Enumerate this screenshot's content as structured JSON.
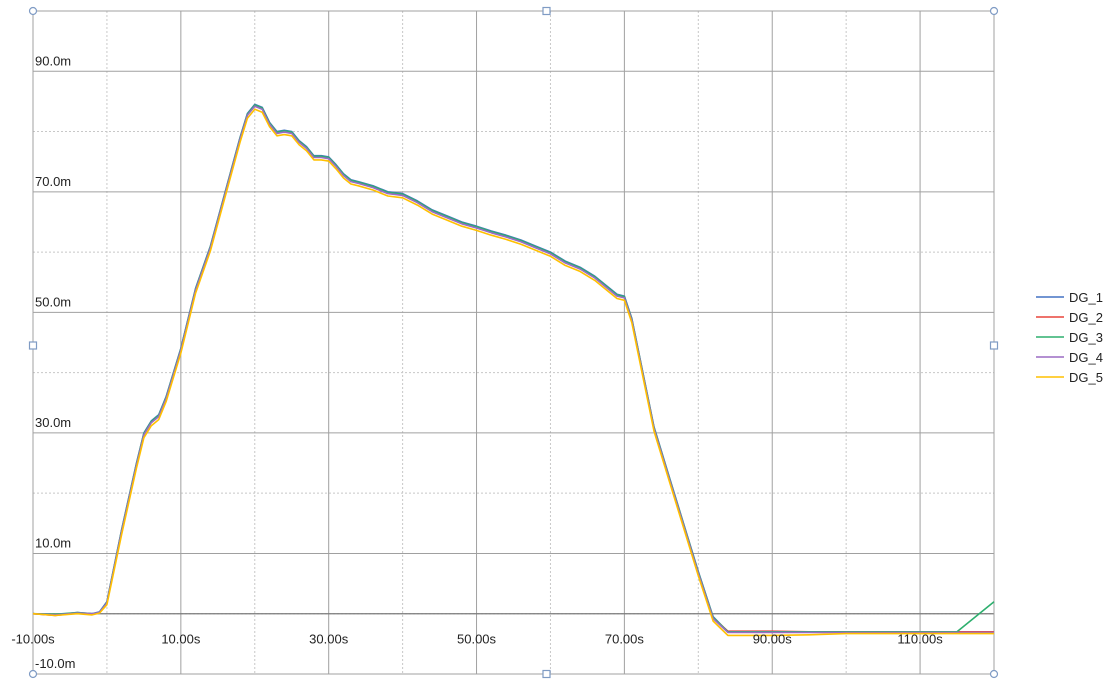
{
  "chart_data": {
    "type": "line",
    "title": "",
    "xlabel": "",
    "ylabel": "",
    "xlim": [
      -10,
      120
    ],
    "ylim": [
      -10,
      100
    ],
    "grid": true,
    "legend_position": "right",
    "x_major_ticks": [
      -10,
      10,
      30,
      50,
      70,
      90,
      110
    ],
    "x_tick_labels": [
      "-10.00s",
      "10.00s",
      "30.00s",
      "50.00s",
      "70.00s",
      "90.00s",
      "110.00s"
    ],
    "y_major_ticks": [
      -10,
      10,
      30,
      50,
      70,
      90
    ],
    "y_tick_labels": [
      "-10.0m",
      "10.0m",
      "30.0m",
      "50.0m",
      "70.0m",
      "90.0m"
    ],
    "x": [
      -10,
      -7,
      -4,
      -2,
      -1,
      0,
      2,
      4,
      5,
      6,
      7,
      8,
      10,
      12,
      14,
      16,
      18,
      19,
      20,
      21,
      22,
      23,
      24,
      25,
      26,
      27,
      28,
      29,
      30,
      31,
      32,
      33,
      34,
      36,
      38,
      40,
      42,
      44,
      46,
      48,
      50,
      52,
      54,
      56,
      58,
      60,
      62,
      64,
      66,
      68,
      69,
      70,
      71,
      72,
      74,
      76,
      78,
      80,
      82,
      84,
      85,
      86,
      90,
      95,
      100,
      105,
      110,
      115,
      120
    ],
    "series": [
      {
        "name": "DG_1",
        "color": "#4472C4",
        "values": [
          0,
          -0.2,
          0.2,
          0,
          0.3,
          2,
          14,
          25,
          30,
          32,
          33,
          36,
          44,
          54,
          61,
          70,
          79,
          83,
          84.5,
          84,
          81.5,
          80,
          80.2,
          80,
          78.5,
          77.5,
          76,
          76,
          75.8,
          74.5,
          73,
          72,
          71.7,
          71,
          70,
          69.7,
          68.5,
          67,
          66,
          65,
          64.3,
          63.5,
          62.8,
          62,
          61,
          60,
          58.5,
          57.5,
          56,
          54,
          53,
          52.7,
          49,
          43,
          31,
          23,
          15,
          7,
          -0.5,
          -3,
          -3,
          -3,
          -3,
          -3,
          -3,
          -3,
          -3,
          -3,
          -3
        ]
      },
      {
        "name": "DG_2",
        "color": "#E8453C",
        "values": [
          0,
          -0.3,
          0.1,
          -0.1,
          0.2,
          1.8,
          13.8,
          24.8,
          29.8,
          31.8,
          32.8,
          35.8,
          43.8,
          53.8,
          60.8,
          69.8,
          78.8,
          82.8,
          84.3,
          83.8,
          81.3,
          79.8,
          80,
          79.8,
          78.3,
          77.3,
          75.8,
          75.8,
          75.6,
          74.3,
          72.8,
          71.8,
          71.5,
          70.8,
          69.8,
          69.5,
          68.3,
          66.8,
          65.8,
          64.8,
          64.1,
          63.3,
          62.6,
          61.8,
          60.8,
          59.8,
          58.3,
          57.3,
          55.8,
          53.8,
          52.8,
          52.5,
          48.8,
          42.8,
          30.8,
          22.8,
          14.8,
          6.8,
          -0.7,
          -2.9,
          -2.9,
          -2.9,
          -2.9,
          -3,
          -3,
          -3,
          -3,
          -3,
          -3
        ]
      },
      {
        "name": "DG_3",
        "color": "#2EAF6E",
        "values": [
          0,
          -0.1,
          0.2,
          0,
          0.2,
          1.9,
          13.9,
          24.9,
          29.9,
          31.9,
          32.9,
          35.9,
          43.9,
          53.9,
          60.9,
          69.9,
          78.9,
          82.9,
          84.4,
          83.9,
          81.4,
          79.9,
          80.1,
          79.9,
          78.4,
          77.4,
          75.9,
          75.9,
          75.7,
          74.4,
          72.9,
          71.9,
          71.6,
          70.9,
          69.9,
          69.6,
          68.4,
          66.9,
          65.9,
          64.9,
          64.2,
          63.4,
          62.7,
          61.9,
          60.9,
          59.9,
          58.4,
          57.4,
          55.9,
          53.9,
          52.9,
          52.6,
          48.9,
          42.9,
          30.9,
          22.9,
          14.9,
          6.9,
          -0.6,
          -3,
          -3,
          -3,
          -3,
          -3,
          -3,
          -3,
          -3,
          -3,
          2
        ]
      },
      {
        "name": "DG_4",
        "color": "#9B6BC4",
        "values": [
          0,
          -0.2,
          0.1,
          0,
          0.2,
          1.8,
          13.7,
          24.7,
          29.7,
          31.7,
          32.7,
          35.7,
          43.7,
          53.7,
          60.7,
          69.7,
          78.7,
          82.7,
          84.2,
          83.7,
          81.2,
          79.7,
          79.9,
          79.7,
          78.2,
          77.2,
          75.7,
          75.7,
          75.5,
          74.2,
          72.7,
          71.7,
          71.4,
          70.7,
          69.7,
          69.4,
          68.2,
          66.7,
          65.7,
          64.7,
          64,
          63.2,
          62.5,
          61.7,
          60.7,
          59.7,
          58.2,
          57.2,
          55.7,
          53.7,
          52.7,
          52.4,
          48.7,
          42.7,
          30.7,
          22.7,
          14.7,
          6.7,
          -0.8,
          -3.1,
          -3.1,
          -3.1,
          -3.1,
          -3.1,
          -3.1,
          -3.1,
          -3.1,
          -3.1,
          -3.1
        ]
      },
      {
        "name": "DG_5",
        "color": "#FFC000",
        "values": [
          0,
          -0.3,
          0,
          -0.2,
          0.1,
          1.5,
          13.2,
          24.2,
          29.2,
          31.2,
          32.2,
          35.2,
          43.2,
          53.2,
          60.2,
          69.2,
          78.2,
          82.2,
          83.7,
          83.2,
          80.8,
          79.3,
          79.5,
          79.3,
          77.8,
          76.8,
          75.3,
          75.3,
          75.1,
          73.8,
          72.3,
          71.3,
          71,
          70.3,
          69.3,
          69,
          67.8,
          66.3,
          65.3,
          64.3,
          63.6,
          62.8,
          62.1,
          61.3,
          60.3,
          59.3,
          57.8,
          56.8,
          55.3,
          53.3,
          52.3,
          52,
          48.3,
          42.3,
          30.3,
          22.3,
          14.3,
          6.3,
          -1.2,
          -3.6,
          -3.6,
          -3.6,
          -3.6,
          -3.5,
          -3.3,
          -3.3,
          -3.3,
          -3.3,
          -3.3
        ]
      }
    ]
  }
}
